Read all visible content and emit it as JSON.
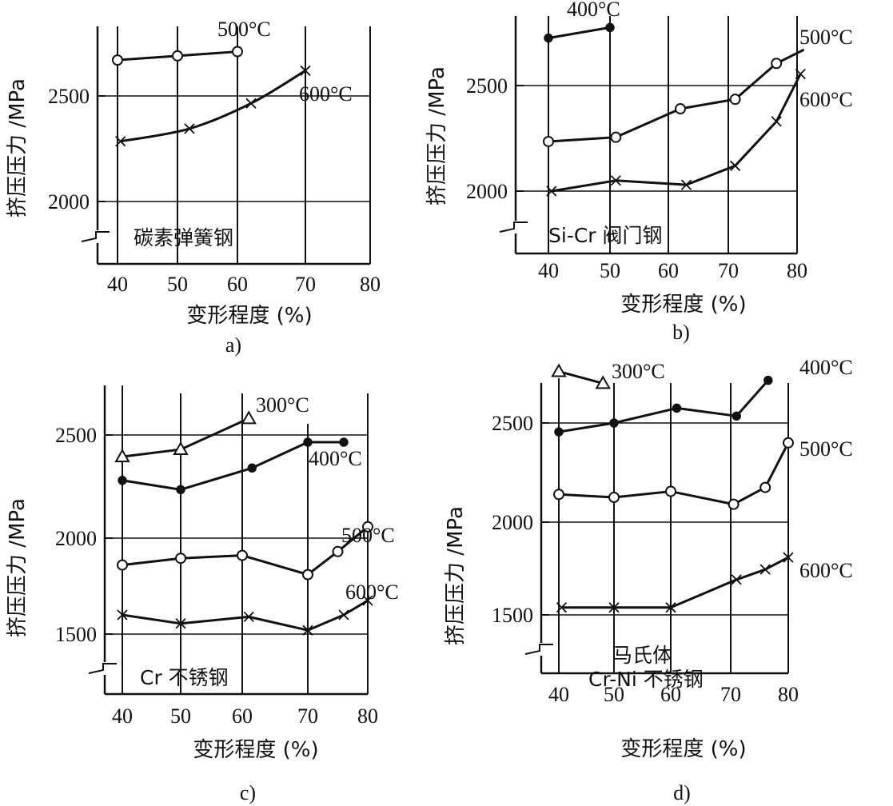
{
  "chart_data": [
    {
      "id": "a",
      "type": "line",
      "caption": "a)",
      "material": [
        "碳素弹簧钢"
      ],
      "xlabel": "变形程度 (%)",
      "ylabel": "挤压压力 /MPa",
      "xticks": [
        40,
        50,
        60,
        70,
        80
      ],
      "yticks": [
        2000,
        2500
      ],
      "xlim": [
        37,
        80
      ],
      "ylim": [
        1700,
        2790
      ],
      "grid": true,
      "axis_break": true,
      "series": [
        {
          "name": "500°C",
          "marker": "open-circle",
          "x": [
            40,
            50,
            60
          ],
          "y": [
            2670,
            2690,
            2710
          ]
        },
        {
          "name": "600°C",
          "marker": "cross",
          "smooth": true,
          "x": [
            40.5,
            52,
            62,
            70
          ],
          "y": [
            2285,
            2345,
            2465,
            2620
          ]
        }
      ]
    },
    {
      "id": "b",
      "type": "line",
      "caption": "b)",
      "material": [
        "Si-Cr 阀门钢"
      ],
      "xlabel": "变形程度 (%)",
      "ylabel": "挤压压力 /MPa",
      "xticks": [
        40,
        50,
        60,
        70,
        80
      ],
      "yticks": [
        2000,
        2500
      ],
      "xlim": [
        37,
        80
      ],
      "ylim": [
        1700,
        2800
      ],
      "grid": true,
      "axis_break": true,
      "series": [
        {
          "name": "400°C",
          "marker": "filled-circle",
          "x": [
            40,
            50
          ],
          "y": [
            2725,
            2775
          ]
        },
        {
          "name": "500°C",
          "marker": "open-circle",
          "x": [
            40,
            51,
            62,
            71,
            77,
            81
          ],
          "y": [
            2235,
            2255,
            2390,
            2435,
            2605,
            2670
          ],
          "last_point_unmarked": true
        },
        {
          "name": "600°C",
          "marker": "cross",
          "x": [
            40.5,
            51,
            63,
            71,
            77,
            80.5
          ],
          "y": [
            2000,
            2050,
            2030,
            2120,
            2330,
            2555
          ]
        }
      ]
    },
    {
      "id": "c",
      "type": "line",
      "caption": "c)",
      "material": [
        "Cr 不锈钢"
      ],
      "xlabel": "变形程度 (%)",
      "ylabel": "挤压压力 /MPa",
      "xticks": [
        40,
        50,
        60,
        70,
        80
      ],
      "yticks": [
        1500,
        2000,
        2500
      ],
      "xlim": [
        37,
        80
      ],
      "ylim": [
        1200,
        2720
      ],
      "grid": true,
      "axis_break": true,
      "series": [
        {
          "name": "300°C",
          "marker": "open-triangle",
          "x": [
            40,
            50,
            61
          ],
          "y": [
            2395,
            2430,
            2580
          ]
        },
        {
          "name": "400°C",
          "marker": "filled-circle",
          "x": [
            40,
            50,
            61.5,
            70,
            76
          ],
          "y": [
            2280,
            2235,
            2340,
            2465,
            2465
          ]
        },
        {
          "name": "500°C",
          "marker": "open-circle",
          "x": [
            40,
            50,
            60,
            70,
            75,
            80
          ],
          "y": [
            1860,
            1895,
            1910,
            1810,
            1930,
            2055
          ]
        },
        {
          "name": "600°C",
          "marker": "cross",
          "x": [
            40,
            50,
            61,
            70,
            76,
            80
          ],
          "y": [
            1600,
            1555,
            1590,
            1520,
            1600,
            1675
          ]
        }
      ]
    },
    {
      "id": "d",
      "type": "line",
      "caption": "d)",
      "material": [
        "马氏体",
        "Cr-Ni 不锈钢"
      ],
      "xlabel": "变形程度 (%)",
      "ylabel": "挤压压力 /MPa",
      "xticks": [
        40,
        50,
        60,
        70,
        80
      ],
      "yticks": [
        1500,
        2000,
        2500
      ],
      "xlim": [
        37,
        80
      ],
      "ylim": [
        1200,
        2720
      ],
      "grid": true,
      "axis_break": true,
      "series": [
        {
          "name": "300°C",
          "marker": "open-triangle",
          "x": [
            40,
            48
          ],
          "y": [
            2760,
            2700
          ]
        },
        {
          "name": "400°C",
          "marker": "filled-circle",
          "x": [
            40,
            50,
            61,
            71,
            76.5
          ],
          "y": [
            2455,
            2500,
            2575,
            2535,
            2715
          ]
        },
        {
          "name": "500°C",
          "marker": "open-circle",
          "x": [
            40,
            50,
            60,
            70.5,
            76,
            80
          ],
          "y": [
            2140,
            2125,
            2155,
            2090,
            2175,
            2400
          ]
        },
        {
          "name": "600°C",
          "marker": "cross",
          "x": [
            40.5,
            50,
            60,
            71,
            76,
            80
          ],
          "y": [
            1540,
            1540,
            1540,
            1690,
            1745,
            1810
          ]
        }
      ]
    }
  ]
}
